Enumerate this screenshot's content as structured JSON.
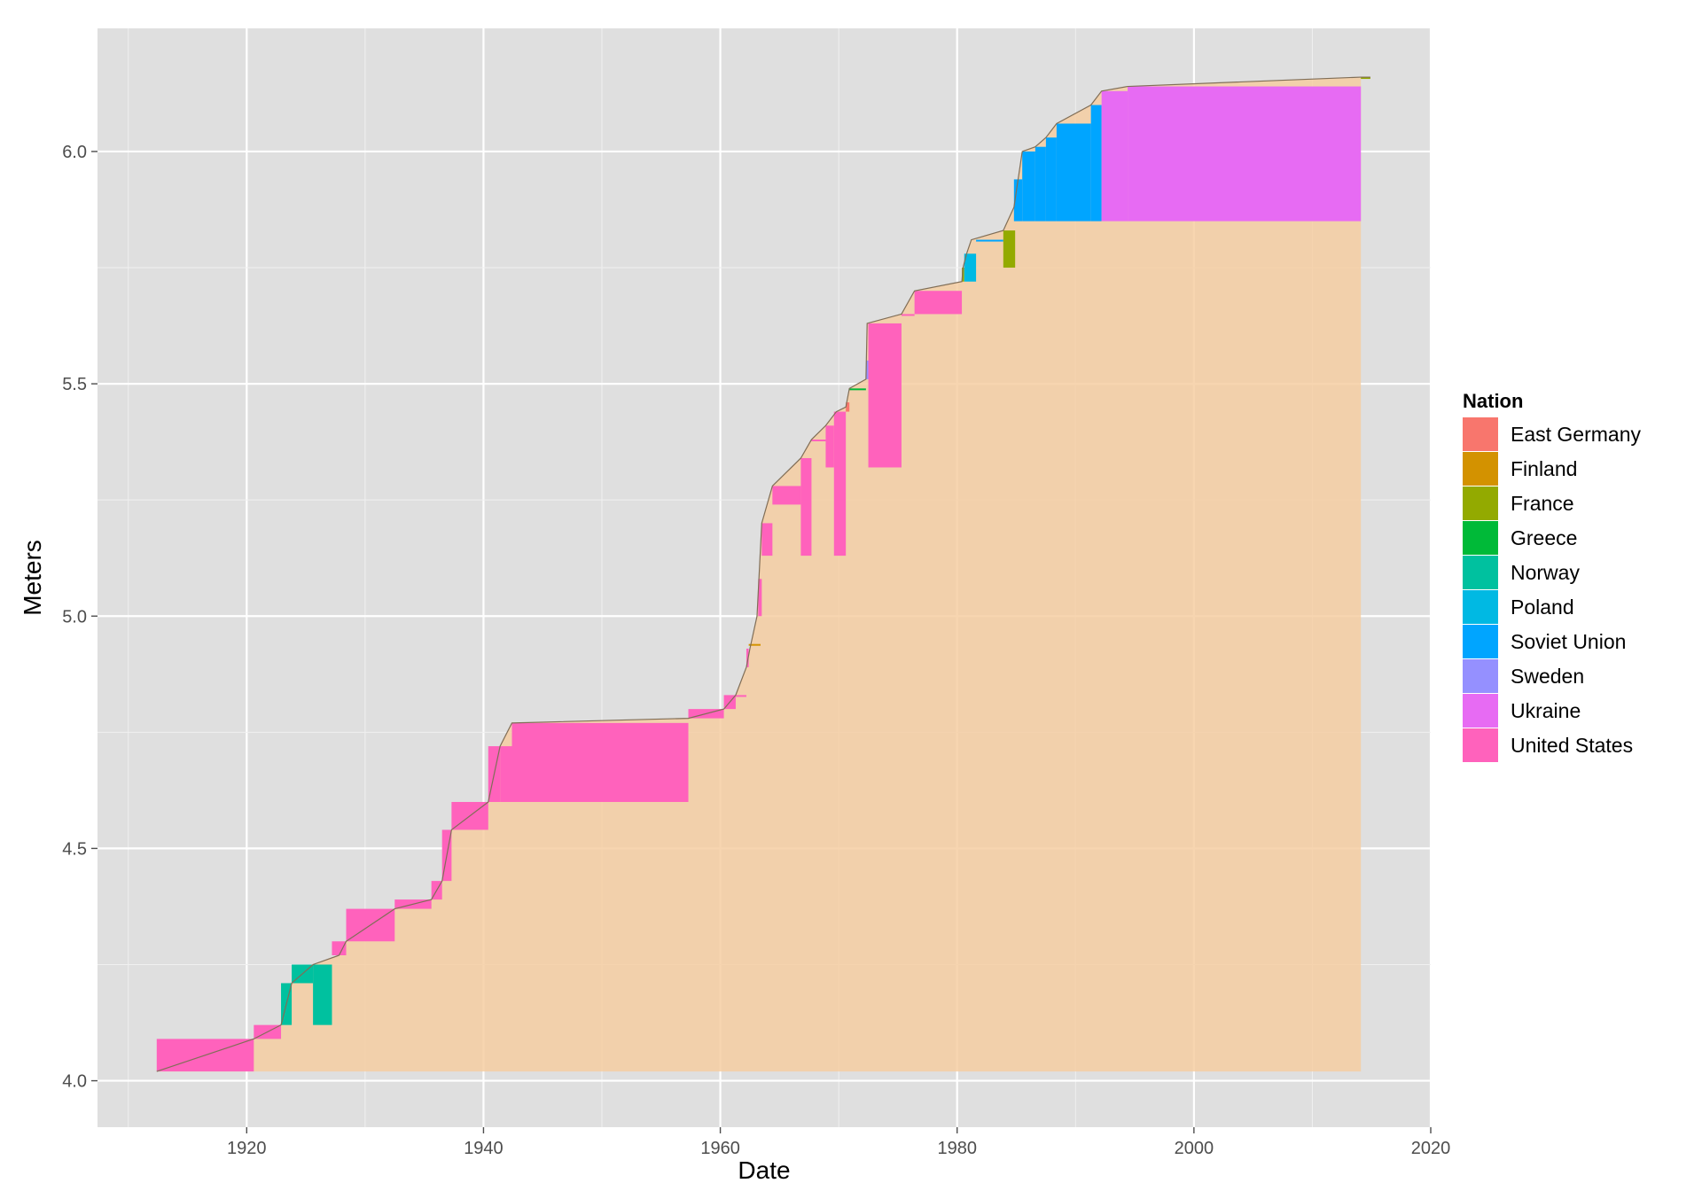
{
  "chart_data": {
    "type": "area",
    "xlabel": "Date",
    "ylabel": "Meters",
    "xlim": [
      1907.4,
      2020
    ],
    "ylim": [
      3.9,
      6.265
    ],
    "x_ticks": [
      1920,
      1940,
      1960,
      1980,
      2000,
      2020
    ],
    "x_tick_labels": [
      "1920",
      "1940",
      "1960",
      "1980",
      "2000",
      "2020"
    ],
    "y_ticks": [
      4.0,
      4.5,
      5.0,
      5.5,
      6.0
    ],
    "y_tick_labels": [
      "4.0",
      "4.5",
      "5.0",
      "5.5",
      "6.0"
    ],
    "grid": true,
    "background": "#dfdfdf",
    "fill_color": "#f6ceA2",
    "outline_color": "#806e57",
    "legend": {
      "title": "Nation",
      "position": "right",
      "items": [
        {
          "name": "East Germany",
          "color": "#f8766d"
        },
        {
          "name": "Finland",
          "color": "#d39200"
        },
        {
          "name": "France",
          "color": "#93aa00"
        },
        {
          "name": "Greece",
          "color": "#00ba38"
        },
        {
          "name": "Norway",
          "color": "#00c19f"
        },
        {
          "name": "Poland",
          "color": "#00b9e3"
        },
        {
          "name": "Soviet Union",
          "color": "#00a5ff"
        },
        {
          "name": "Sweden",
          "color": "#9590ff"
        },
        {
          "name": "Ukraine",
          "color": "#e76bf3"
        },
        {
          "name": "United States",
          "color": "#ff62bc"
        }
      ]
    },
    "record_progression": [
      [
        1912.4,
        4.02
      ],
      [
        1920.6,
        4.09
      ],
      [
        1922.9,
        4.12
      ],
      [
        1923.8,
        4.21
      ],
      [
        1925.6,
        4.25
      ],
      [
        1927.8,
        4.27
      ],
      [
        1928.4,
        4.3
      ],
      [
        1932.5,
        4.37
      ],
      [
        1935.6,
        4.39
      ],
      [
        1936.5,
        4.43
      ],
      [
        1937.3,
        4.54
      ],
      [
        1940.4,
        4.6
      ],
      [
        1941.4,
        4.72
      ],
      [
        1942.4,
        4.77
      ],
      [
        1957.3,
        4.78
      ],
      [
        1960.3,
        4.8
      ],
      [
        1961.3,
        4.83
      ],
      [
        1962.2,
        4.89
      ],
      [
        1962.5,
        4.93
      ],
      [
        1963.1,
        5.0
      ],
      [
        1963.5,
        5.2
      ],
      [
        1964.4,
        5.28
      ],
      [
        1966.8,
        5.34
      ],
      [
        1967.7,
        5.38
      ],
      [
        1968.9,
        5.41
      ],
      [
        1969.8,
        5.44
      ],
      [
        1970.6,
        5.45
      ],
      [
        1970.9,
        5.49
      ],
      [
        1972.3,
        5.51
      ],
      [
        1972.4,
        5.63
      ],
      [
        1975.3,
        5.65
      ],
      [
        1976.4,
        5.7
      ],
      [
        1980.4,
        5.72
      ],
      [
        1980.5,
        5.75
      ],
      [
        1980.8,
        5.78
      ],
      [
        1981.2,
        5.81
      ],
      [
        1983.9,
        5.83
      ],
      [
        1984.8,
        5.88
      ],
      [
        1985.5,
        6.0
      ],
      [
        1986.6,
        6.01
      ],
      [
        1987.5,
        6.03
      ],
      [
        1988.4,
        6.06
      ],
      [
        1991.3,
        6.1
      ],
      [
        1992.2,
        6.13
      ],
      [
        1994.4,
        6.14
      ],
      [
        2014.1,
        6.16
      ],
      [
        2014.9,
        6.16
      ]
    ],
    "records": [
      {
        "nation": "United States",
        "start": 1912.4,
        "end": 1920.6,
        "meters": 4.02,
        "surpassed_by": 4.09
      },
      {
        "nation": "United States",
        "start": 1920.6,
        "end": 1922.9,
        "meters": 4.09,
        "surpassed_by": 4.12
      },
      {
        "nation": "Norway",
        "start": 1922.9,
        "end": 1923.8,
        "meters": 4.12,
        "surpassed_by": 4.21
      },
      {
        "nation": "Norway",
        "start": 1923.8,
        "end": 1925.6,
        "meters": 4.21,
        "surpassed_by": 4.25
      },
      {
        "nation": "Norway",
        "start": 1925.6,
        "end": 1927.2,
        "meters": 4.12,
        "surpassed_by": 4.25
      },
      {
        "nation": "United States",
        "start": 1927.2,
        "end": 1928.4,
        "meters": 4.27,
        "surpassed_by": 4.3
      },
      {
        "nation": "United States",
        "start": 1928.4,
        "end": 1932.5,
        "meters": 4.3,
        "surpassed_by": 4.37
      },
      {
        "nation": "United States",
        "start": 1932.5,
        "end": 1935.6,
        "meters": 4.37,
        "surpassed_by": 4.39
      },
      {
        "nation": "United States",
        "start": 1935.6,
        "end": 1936.5,
        "meters": 4.39,
        "surpassed_by": 4.43
      },
      {
        "nation": "United States",
        "start": 1936.5,
        "end": 1937.3,
        "meters": 4.43,
        "surpassed_by": 4.54
      },
      {
        "nation": "United States",
        "start": 1937.3,
        "end": 1940.4,
        "meters": 4.54,
        "surpassed_by": 4.6
      },
      {
        "nation": "United States",
        "start": 1940.4,
        "end": 1941.4,
        "meters": 4.6,
        "surpassed_by": 4.72
      },
      {
        "nation": "United States",
        "start": 1941.4,
        "end": 1942.4,
        "meters": 4.6,
        "surpassed_by": 4.72
      },
      {
        "nation": "United States",
        "start": 1942.4,
        "end": 1957.3,
        "meters": 4.6,
        "surpassed_by": 4.77
      },
      {
        "nation": "United States",
        "start": 1957.3,
        "end": 1960.3,
        "meters": 4.78,
        "surpassed_by": 4.8
      },
      {
        "nation": "United States",
        "start": 1960.3,
        "end": 1961.3,
        "meters": 4.8,
        "surpassed_by": 4.83
      },
      {
        "nation": "United States",
        "start": 1961.3,
        "end": 1962.2,
        "meters": 4.83,
        "surpassed_by": 4.83
      },
      {
        "nation": "United States",
        "start": 1962.2,
        "end": 1962.4,
        "meters": 4.89,
        "surpassed_by": 4.93
      },
      {
        "nation": "Finland",
        "start": 1962.4,
        "end": 1963.4,
        "meters": 4.94,
        "surpassed_by": 4.94
      },
      {
        "nation": "United States",
        "start": 1963.2,
        "end": 1963.5,
        "meters": 5.0,
        "surpassed_by": 5.08
      },
      {
        "nation": "United States",
        "start": 1963.5,
        "end": 1964.4,
        "meters": 5.13,
        "surpassed_by": 5.2
      },
      {
        "nation": "United States",
        "start": 1964.4,
        "end": 1966.8,
        "meters": 5.24,
        "surpassed_by": 5.28
      },
      {
        "nation": "United States",
        "start": 1966.8,
        "end": 1967.7,
        "meters": 5.13,
        "surpassed_by": 5.34
      },
      {
        "nation": "United States",
        "start": 1967.7,
        "end": 1968.9,
        "meters": 5.38,
        "surpassed_by": 5.38
      },
      {
        "nation": "United States",
        "start": 1968.9,
        "end": 1969.6,
        "meters": 5.32,
        "surpassed_by": 5.41
      },
      {
        "nation": "United States",
        "start": 1969.6,
        "end": 1970.6,
        "meters": 5.13,
        "surpassed_by": 5.44
      },
      {
        "nation": "East Germany",
        "start": 1970.6,
        "end": 1970.9,
        "meters": 5.44,
        "surpassed_by": 5.46
      },
      {
        "nation": "Greece",
        "start": 1970.9,
        "end": 1972.3,
        "meters": 5.49,
        "surpassed_by": 5.49
      },
      {
        "nation": "Sweden",
        "start": 1972.3,
        "end": 1972.5,
        "meters": 5.51,
        "surpassed_by": 5.55
      },
      {
        "nation": "United States",
        "start": 1972.5,
        "end": 1975.3,
        "meters": 5.32,
        "surpassed_by": 5.63
      },
      {
        "nation": "United States",
        "start": 1975.3,
        "end": 1976.4,
        "meters": 5.65,
        "surpassed_by": 5.65
      },
      {
        "nation": "United States",
        "start": 1976.4,
        "end": 1980.4,
        "meters": 5.65,
        "surpassed_by": 5.7
      },
      {
        "nation": "France",
        "start": 1980.4,
        "end": 1980.6,
        "meters": 5.72,
        "surpassed_by": 5.75
      },
      {
        "nation": "Poland",
        "start": 1980.6,
        "end": 1981.6,
        "meters": 5.72,
        "surpassed_by": 5.78
      },
      {
        "nation": "Soviet Union",
        "start": 1981.6,
        "end": 1983.9,
        "meters": 5.81,
        "surpassed_by": 5.81
      },
      {
        "nation": "France",
        "start": 1983.9,
        "end": 1984.9,
        "meters": 5.75,
        "surpassed_by": 5.83
      },
      {
        "nation": "Soviet Union",
        "start": 1984.8,
        "end": 1985.5,
        "meters": 5.85,
        "surpassed_by": 5.94
      },
      {
        "nation": "Soviet Union",
        "start": 1985.5,
        "end": 1986.6,
        "meters": 5.85,
        "surpassed_by": 6.0
      },
      {
        "nation": "Soviet Union",
        "start": 1986.6,
        "end": 1987.5,
        "meters": 5.85,
        "surpassed_by": 6.01
      },
      {
        "nation": "Soviet Union",
        "start": 1987.5,
        "end": 1988.4,
        "meters": 5.85,
        "surpassed_by": 6.03
      },
      {
        "nation": "Soviet Union",
        "start": 1988.4,
        "end": 1991.3,
        "meters": 5.85,
        "surpassed_by": 6.06
      },
      {
        "nation": "Soviet Union",
        "start": 1991.3,
        "end": 1992.2,
        "meters": 5.85,
        "surpassed_by": 6.1
      },
      {
        "nation": "Ukraine",
        "start": 1992.2,
        "end": 1994.4,
        "meters": 5.85,
        "surpassed_by": 6.13
      },
      {
        "nation": "Ukraine",
        "start": 1994.4,
        "end": 2014.1,
        "meters": 5.85,
        "surpassed_by": 6.14
      },
      {
        "nation": "France",
        "start": 2014.1,
        "end": 2014.9,
        "meters": 6.16,
        "surpassed_by": 6.16
      }
    ]
  }
}
